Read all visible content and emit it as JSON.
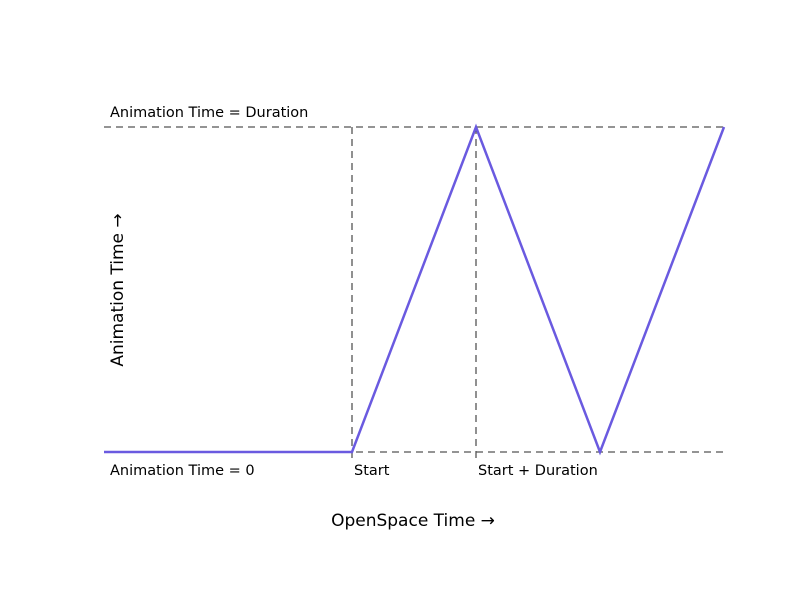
{
  "chart_data": {
    "type": "line",
    "title": "",
    "xlabel": "OpenSpace Time →",
    "ylabel": "Animation Time →",
    "xlim": [
      0,
      5
    ],
    "ylim": [
      0,
      1
    ],
    "grid": false,
    "axes_visible": false,
    "series": [
      {
        "color": "#6a5ae0",
        "x": [
          0,
          2,
          3,
          4,
          5
        ],
        "y": [
          0,
          0,
          1,
          0,
          1
        ]
      }
    ],
    "reference_lines": {
      "horizontal": [
        0,
        1
      ],
      "vertical": [
        2,
        3
      ],
      "color": "#555555",
      "style": "dashed"
    },
    "annotations": [
      {
        "text": "Animation Time = Duration",
        "x": 0,
        "y": 1
      },
      {
        "text": "Animation Time = 0",
        "x": 0,
        "y": 0
      },
      {
        "text": "Start",
        "x": 2,
        "y": 0
      },
      {
        "text": "Start + Duration",
        "x": 3,
        "y": 0
      }
    ]
  }
}
